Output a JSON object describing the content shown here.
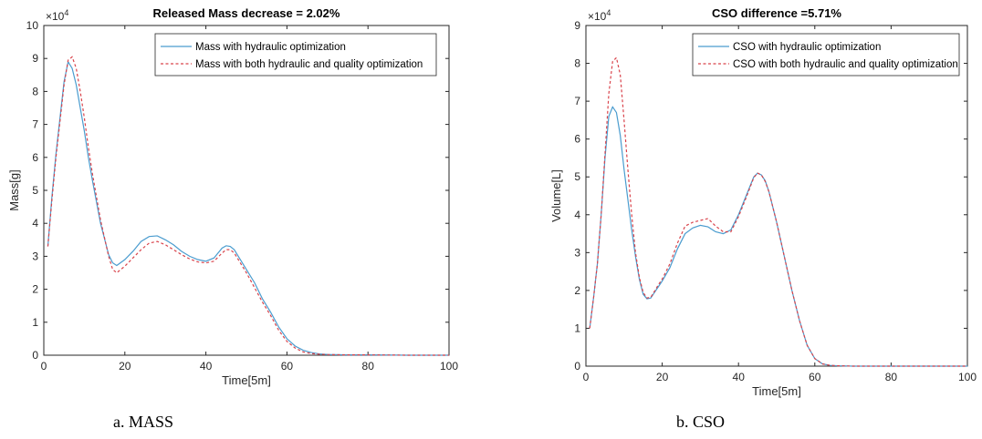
{
  "chart_data": [
    {
      "type": "line",
      "title": "Released Mass decrease = 2.02%",
      "xlabel": "Time[5m]",
      "ylabel": "Mass[g]",
      "exponent_label": "×10",
      "exponent_power": "4",
      "xlim": [
        0,
        100
      ],
      "ylim": [
        0,
        10
      ],
      "xticks": [
        0,
        20,
        40,
        60,
        80,
        100
      ],
      "yticks": [
        0,
        1,
        2,
        3,
        4,
        5,
        6,
        7,
        8,
        9,
        10
      ],
      "legend_position": "top-right",
      "caption": "a.    MASS",
      "series": [
        {
          "name": "Mass with hydraulic optimization",
          "color": "#4a9ccf",
          "style": "solid",
          "x": [
            1,
            2,
            3,
            4,
            5,
            6,
            7,
            8,
            9,
            10,
            11,
            12,
            14,
            16,
            17,
            18,
            20,
            22,
            24,
            26,
            28,
            30,
            32,
            34,
            36,
            38,
            40,
            42,
            44,
            45,
            46,
            47,
            48,
            50,
            52,
            54,
            56,
            58,
            60,
            62,
            64,
            66,
            68,
            70,
            75,
            80,
            90,
            100
          ],
          "values": [
            3.3,
            4.8,
            6.1,
            7.2,
            8.3,
            8.9,
            8.7,
            8.2,
            7.5,
            6.8,
            6.0,
            5.3,
            4.0,
            3.05,
            2.8,
            2.72,
            2.9,
            3.15,
            3.45,
            3.6,
            3.62,
            3.5,
            3.35,
            3.15,
            3.0,
            2.9,
            2.85,
            2.95,
            3.25,
            3.32,
            3.3,
            3.2,
            3.0,
            2.6,
            2.2,
            1.7,
            1.3,
            0.85,
            0.5,
            0.28,
            0.15,
            0.08,
            0.04,
            0.02,
            0.01,
            0.01,
            0.0,
            0.0
          ]
        },
        {
          "name": "Mass with both hydraulic and quality optimization",
          "color": "#d9434b",
          "style": "dashed",
          "x": [
            1,
            2,
            3,
            4,
            5,
            6,
            7,
            8,
            9,
            10,
            11,
            12,
            14,
            16,
            17,
            18,
            20,
            22,
            24,
            26,
            28,
            30,
            32,
            34,
            36,
            38,
            40,
            42,
            44,
            45,
            46,
            47,
            48,
            50,
            52,
            54,
            56,
            58,
            60,
            62,
            64,
            66,
            68,
            70,
            75,
            80,
            90,
            100
          ],
          "values": [
            3.3,
            4.7,
            6.0,
            7.1,
            8.2,
            8.95,
            9.05,
            8.7,
            8.0,
            7.2,
            6.3,
            5.5,
            4.1,
            3.0,
            2.6,
            2.5,
            2.7,
            2.95,
            3.2,
            3.4,
            3.45,
            3.35,
            3.2,
            3.05,
            2.92,
            2.83,
            2.8,
            2.85,
            3.1,
            3.2,
            3.2,
            3.1,
            2.9,
            2.5,
            2.05,
            1.6,
            1.2,
            0.75,
            0.42,
            0.22,
            0.1,
            0.05,
            0.03,
            0.02,
            0.01,
            0.01,
            0.0,
            0.0
          ]
        }
      ]
    },
    {
      "type": "line",
      "title": "CSO difference =5.71%",
      "xlabel": "Time[5m]",
      "ylabel": "Volume[L]",
      "exponent_label": "×10",
      "exponent_power": "4",
      "xlim": [
        0,
        100
      ],
      "ylim": [
        0,
        9
      ],
      "xticks": [
        0,
        20,
        40,
        60,
        80,
        100
      ],
      "yticks": [
        0,
        1,
        2,
        3,
        4,
        5,
        6,
        7,
        8,
        9
      ],
      "legend_position": "top-right",
      "caption": "b. CSO",
      "series": [
        {
          "name": "CSO with hydraulic optimization",
          "color": "#4a9ccf",
          "style": "solid",
          "x": [
            1,
            2,
            3,
            4,
            5,
            6,
            7,
            8,
            9,
            10,
            11,
            12,
            13,
            14,
            15,
            16,
            17,
            18,
            19,
            20,
            22,
            24,
            26,
            28,
            30,
            32,
            34,
            36,
            38,
            40,
            42,
            44,
            45,
            46,
            47,
            48,
            50,
            52,
            54,
            56,
            58,
            60,
            62,
            64,
            66,
            70,
            80,
            100
          ],
          "values": [
            1.0,
            1.8,
            2.7,
            4.0,
            5.5,
            6.6,
            6.85,
            6.7,
            6.1,
            5.2,
            4.4,
            3.6,
            2.9,
            2.3,
            1.9,
            1.78,
            1.8,
            1.95,
            2.1,
            2.25,
            2.6,
            3.1,
            3.5,
            3.65,
            3.72,
            3.68,
            3.55,
            3.5,
            3.6,
            4.0,
            4.5,
            5.0,
            5.1,
            5.05,
            4.9,
            4.6,
            3.8,
            2.9,
            2.0,
            1.2,
            0.55,
            0.2,
            0.06,
            0.02,
            0.01,
            0.0,
            0.0,
            0.0
          ]
        },
        {
          "name": "CSO with both hydraulic and quality optimization",
          "color": "#d9434b",
          "style": "dashed",
          "x": [
            1,
            2,
            3,
            4,
            5,
            6,
            7,
            8,
            9,
            10,
            11,
            12,
            13,
            14,
            15,
            16,
            17,
            18,
            19,
            20,
            22,
            24,
            26,
            28,
            30,
            32,
            34,
            36,
            38,
            40,
            42,
            44,
            45,
            46,
            47,
            48,
            50,
            52,
            54,
            56,
            58,
            60,
            62,
            64,
            66,
            70,
            80,
            100
          ],
          "values": [
            1.0,
            1.8,
            2.7,
            4.0,
            5.6,
            7.2,
            8.05,
            8.15,
            7.7,
            6.5,
            5.2,
            4.0,
            3.0,
            2.35,
            1.95,
            1.8,
            1.82,
            1.98,
            2.15,
            2.3,
            2.7,
            3.25,
            3.7,
            3.8,
            3.85,
            3.9,
            3.7,
            3.55,
            3.55,
            3.95,
            4.45,
            4.98,
            5.1,
            5.05,
            4.88,
            4.6,
            3.8,
            2.9,
            2.0,
            1.2,
            0.55,
            0.2,
            0.06,
            0.02,
            0.01,
            0.0,
            0.0,
            0.0
          ]
        }
      ]
    }
  ]
}
